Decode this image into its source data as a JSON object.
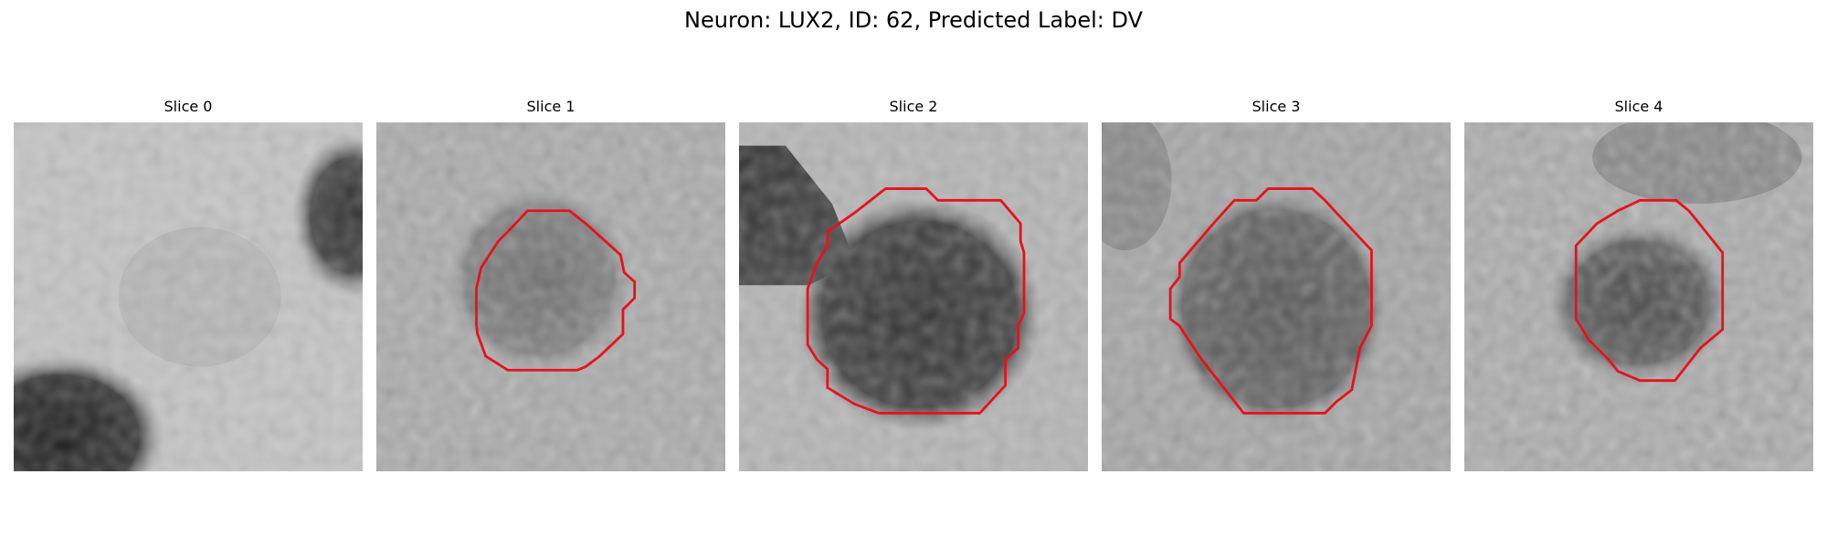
{
  "figure": {
    "title": "Neuron: LUX2, ID: 62, Predicted Label: DV",
    "contour_color": "#e8111b"
  },
  "panels": [
    {
      "label": "Slice 0",
      "has_contour": false
    },
    {
      "label": "Slice 1",
      "has_contour": true
    },
    {
      "label": "Slice 2",
      "has_contour": true
    },
    {
      "label": "Slice 3",
      "has_contour": true
    },
    {
      "label": "Slice 4",
      "has_contour": true
    }
  ]
}
